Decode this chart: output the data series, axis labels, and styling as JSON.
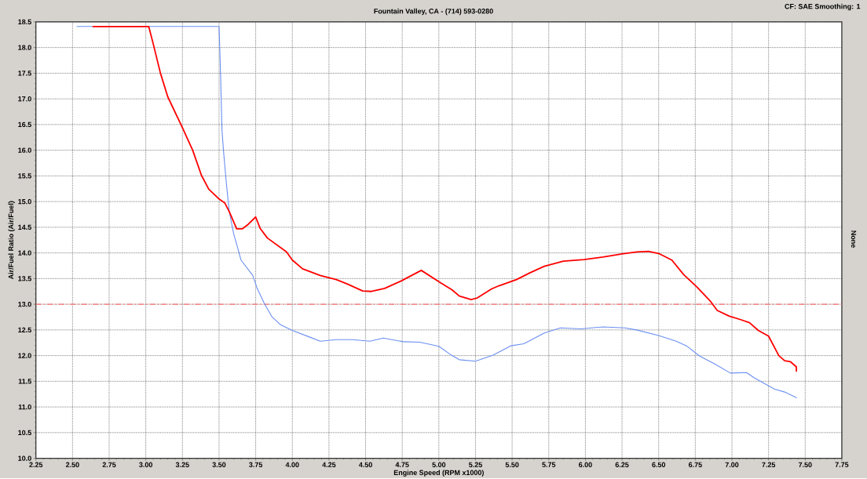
{
  "chart_data": {
    "type": "line",
    "subtitle": "Fountain Valley, CA - (714) 593-0280",
    "xlabel": "Engine Speed (RPM x1000)",
    "ylabel": "Air/Fuel Ratio (Air/Fuel)",
    "y2label": "None",
    "annotations": [
      "CF: SAE  Smoothing: 1"
    ],
    "xlim": [
      2.25,
      7.75
    ],
    "ylim": [
      10,
      18.5
    ],
    "xticks": [
      2.25,
      {
        "value": 2.5,
        "label": "2.50"
      },
      2.75,
      {
        "value": 3,
        "label": "3.00"
      },
      3.25,
      {
        "value": 3.5,
        "label": "3.50"
      },
      3.75,
      {
        "value": 4,
        "label": "4.00"
      },
      4.25,
      {
        "value": 4.5,
        "label": "4.50"
      },
      4.75,
      {
        "value": 5,
        "label": "5.00"
      },
      5.25,
      {
        "value": 5.5,
        "label": "5.50"
      },
      5.75,
      {
        "value": 6,
        "label": "6.00"
      },
      6.25,
      {
        "value": 6.5,
        "label": "6.50"
      },
      6.75,
      {
        "value": 7,
        "label": "7.00"
      },
      7.25,
      {
        "value": 7.5,
        "label": "7.50"
      },
      7.75
    ],
    "yticks": [
      {
        "value": 10,
        "label": "10.0"
      },
      10.5,
      {
        "value": 11,
        "label": "11.0"
      },
      11.5,
      {
        "value": 12,
        "label": "12.0"
      },
      12.5,
      {
        "value": 13,
        "label": "13.0"
      },
      13.5,
      {
        "value": 14,
        "label": "14.0"
      },
      14.5,
      {
        "value": 15,
        "label": "15.0"
      },
      15.5,
      {
        "value": 16,
        "label": "16.0"
      },
      16.5,
      {
        "value": 17,
        "label": "17.0"
      },
      17.5,
      {
        "value": 18,
        "label": "18.0"
      },
      18.5
    ],
    "grid": true,
    "marker": "none",
    "ref_lines": [
      {
        "axis": "y",
        "value": 13,
        "color": "#ff7070",
        "line_style": "dashdot"
      }
    ],
    "series": [
      {
        "color": "#6b8ff2",
        "x": [
          2.53,
          3.5,
          3.51,
          3.52,
          3.53,
          3.55,
          3.57,
          3.6,
          3.63,
          3.65,
          3.73,
          3.76,
          3.81,
          3.86,
          3.92,
          4.0,
          4.11,
          4.19,
          4.3,
          4.41,
          4.53,
          4.62,
          4.76,
          4.87,
          5.0,
          5.09,
          5.14,
          5.25,
          5.37,
          5.49,
          5.58,
          5.72,
          5.83,
          5.97,
          6.12,
          6.27,
          6.35,
          6.5,
          6.62,
          6.69,
          6.78,
          6.88,
          6.99,
          7.1,
          7.15,
          7.29,
          7.36,
          7.44
        ],
        "values": [
          18.41,
          18.41,
          17.5,
          16.4,
          16.0,
          15.35,
          14.8,
          14.37,
          14.07,
          13.86,
          13.56,
          13.31,
          13.01,
          12.76,
          12.6,
          12.49,
          12.37,
          12.28,
          12.31,
          12.31,
          12.28,
          12.34,
          12.27,
          12.26,
          12.18,
          12.0,
          11.92,
          11.89,
          12.01,
          12.19,
          12.23,
          12.44,
          12.54,
          12.52,
          12.56,
          12.54,
          12.5,
          12.39,
          12.28,
          12.19,
          11.99,
          11.84,
          11.66,
          11.67,
          11.57,
          11.35,
          11.29,
          11.18
        ]
      },
      {
        "color": "#ff0000",
        "x": [
          2.64,
          3.02,
          3.05,
          3.1,
          3.15,
          3.25,
          3.32,
          3.38,
          3.43,
          3.5,
          3.54,
          3.57,
          3.62,
          3.66,
          3.7,
          3.75,
          3.78,
          3.83,
          3.96,
          4.0,
          4.07,
          4.19,
          4.3,
          4.38,
          4.48,
          4.54,
          4.63,
          4.74,
          4.88,
          5.01,
          5.09,
          5.14,
          5.22,
          5.26,
          5.36,
          5.41,
          5.53,
          5.62,
          5.72,
          5.85,
          5.99,
          6.12,
          6.25,
          6.35,
          6.43,
          6.5,
          6.59,
          6.67,
          6.76,
          6.85,
          6.9,
          6.98,
          7.06,
          7.12,
          7.18,
          7.25,
          7.32,
          7.36,
          7.4,
          7.44,
          7.44
        ],
        "values": [
          18.41,
          18.41,
          18.08,
          17.5,
          17.04,
          16.44,
          16.0,
          15.51,
          15.24,
          15.05,
          14.97,
          14.8,
          14.47,
          14.47,
          14.56,
          14.7,
          14.48,
          14.29,
          14.02,
          13.86,
          13.69,
          13.56,
          13.48,
          13.39,
          13.26,
          13.25,
          13.31,
          13.45,
          13.66,
          13.42,
          13.28,
          13.16,
          13.09,
          13.12,
          13.3,
          13.36,
          13.48,
          13.61,
          13.74,
          13.84,
          13.87,
          13.92,
          13.98,
          14.02,
          14.03,
          13.99,
          13.86,
          13.58,
          13.34,
          13.07,
          12.88,
          12.77,
          12.7,
          12.64,
          12.49,
          12.38,
          12.0,
          11.9,
          11.88,
          11.78,
          11.7
        ]
      }
    ]
  }
}
